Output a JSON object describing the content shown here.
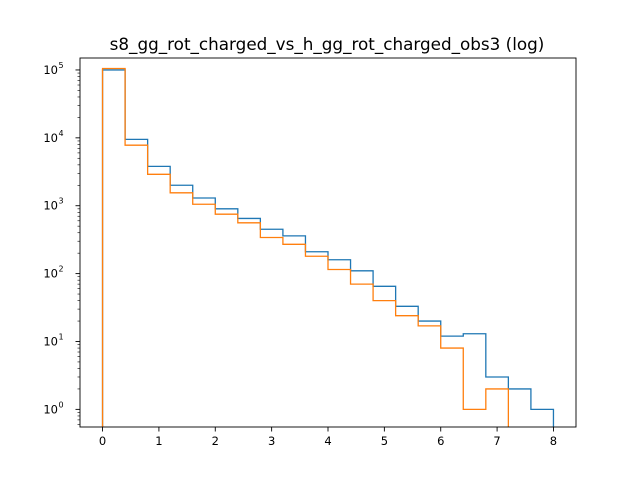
{
  "chart_data": {
    "type": "step",
    "title": "s8_gg_rot_charged_vs_h_gg_rot_charged_obs3 (log)",
    "xlabel": "",
    "ylabel": "",
    "yscale": "log",
    "xlim": [
      -0.4,
      8.4
    ],
    "ylim": [
      0.55,
      150000
    ],
    "xticks": [
      0,
      1,
      2,
      3,
      4,
      5,
      6,
      7,
      8
    ],
    "yticks": [
      {
        "base": "10",
        "exp": "0",
        "value": 1
      },
      {
        "base": "10",
        "exp": "1",
        "value": 10
      },
      {
        "base": "10",
        "exp": "2",
        "value": 100
      },
      {
        "base": "10",
        "exp": "3",
        "value": 1000
      },
      {
        "base": "10",
        "exp": "4",
        "value": 10000
      },
      {
        "base": "10",
        "exp": "5",
        "value": 100000
      }
    ],
    "bin_edges": [
      0,
      0.4,
      0.8,
      1.2,
      1.6,
      2.0,
      2.4,
      2.8,
      3.2,
      3.6,
      4.0,
      4.4,
      4.8,
      5.2,
      5.6,
      6.0,
      6.4,
      6.8,
      7.2,
      7.6,
      8.0
    ],
    "series": [
      {
        "color": "#1f77b4",
        "values": [
          100000,
          9500,
          3800,
          2000,
          1300,
          900,
          650,
          450,
          360,
          210,
          160,
          110,
          65,
          33,
          20,
          12,
          13,
          3,
          2,
          1
        ]
      },
      {
        "color": "#ff7f0e",
        "values": [
          105000,
          7800,
          2900,
          1550,
          1050,
          750,
          560,
          340,
          270,
          180,
          115,
          70,
          40,
          24,
          17,
          8,
          1,
          2,
          0,
          0
        ]
      }
    ]
  }
}
